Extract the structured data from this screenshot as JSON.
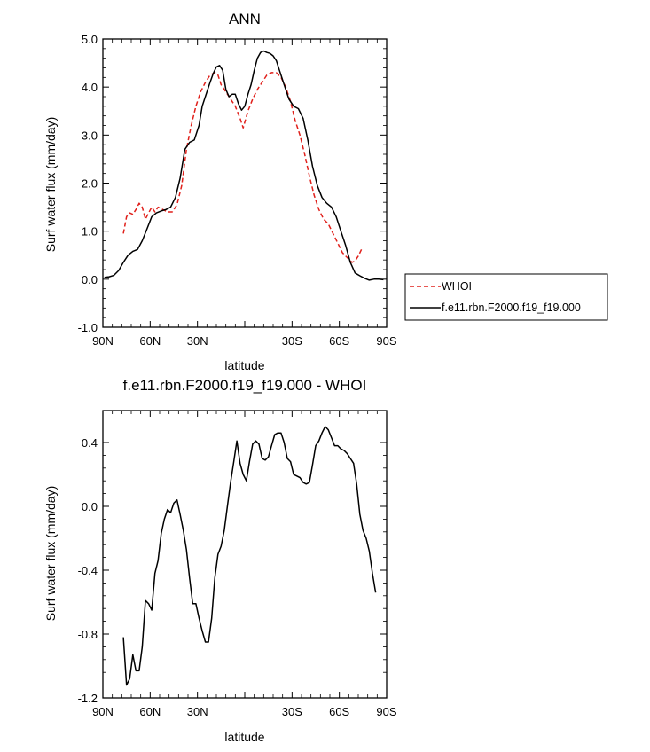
{
  "chart_data": [
    {
      "type": "line",
      "title": "ANN",
      "xlabel": "latitude",
      "ylabel": "Surf water flux (mm/day)",
      "xlim": [
        90,
        -90
      ],
      "ylim": [
        -1.0,
        5.0
      ],
      "x_ticks": [
        90,
        60,
        30,
        0,
        -30,
        -60,
        -90
      ],
      "x_tick_labels": [
        "90N",
        "60N",
        "30N",
        "",
        "30S",
        "60S",
        "90S"
      ],
      "y_ticks": [
        -1,
        0,
        1,
        2,
        3,
        4,
        5
      ],
      "y_tick_labels": [
        "-1.0",
        "0.0",
        "1.0",
        "2.0",
        "3.0",
        "4.0",
        "5.0"
      ],
      "grid": false,
      "legend_position": "right",
      "series": [
        {
          "name": "WHOI",
          "color": "#e0201b",
          "dash": "dashed",
          "points": [
            [
              77,
              0.95
            ],
            [
              75,
              1.3
            ],
            [
              73,
              1.38
            ],
            [
              71,
              1.35
            ],
            [
              69,
              1.45
            ],
            [
              67,
              1.58
            ],
            [
              65,
              1.5
            ],
            [
              63,
              1.25
            ],
            [
              61,
              1.38
            ],
            [
              59,
              1.5
            ],
            [
              57,
              1.4
            ],
            [
              55,
              1.5
            ],
            [
              52,
              1.45
            ],
            [
              49,
              1.4
            ],
            [
              46,
              1.4
            ],
            [
              43,
              1.55
            ],
            [
              40,
              1.95
            ],
            [
              37,
              2.7
            ],
            [
              34,
              3.2
            ],
            [
              31,
              3.6
            ],
            [
              28,
              3.9
            ],
            [
              25,
              4.1
            ],
            [
              22,
              4.25
            ],
            [
              19,
              4.3
            ],
            [
              17,
              4.25
            ],
            [
              15,
              4.05
            ],
            [
              12,
              3.9
            ],
            [
              9,
              3.75
            ],
            [
              6,
              3.6
            ],
            [
              3,
              3.35
            ],
            [
              1,
              3.15
            ],
            [
              -2,
              3.5
            ],
            [
              -5,
              3.75
            ],
            [
              -8,
              3.95
            ],
            [
              -11,
              4.1
            ],
            [
              -14,
              4.25
            ],
            [
              -17,
              4.3
            ],
            [
              -20,
              4.3
            ],
            [
              -23,
              4.2
            ],
            [
              -26,
              4.0
            ],
            [
              -29,
              3.7
            ],
            [
              -32,
              3.3
            ],
            [
              -35,
              3.0
            ],
            [
              -38,
              2.6
            ],
            [
              -41,
              2.15
            ],
            [
              -44,
              1.75
            ],
            [
              -47,
              1.45
            ],
            [
              -50,
              1.25
            ],
            [
              -53,
              1.15
            ],
            [
              -56,
              0.95
            ],
            [
              -59,
              0.75
            ],
            [
              -62,
              0.55
            ],
            [
              -65,
              0.45
            ],
            [
              -68,
              0.35
            ],
            [
              -70,
              0.38
            ],
            [
              -72,
              0.48
            ],
            [
              -74,
              0.62
            ]
          ]
        },
        {
          "name": "f.e11.rbn.F2000.f19_f19.000",
          "color": "#000000",
          "dash": "solid",
          "points": [
            [
              89,
              0.04
            ],
            [
              86,
              0.05
            ],
            [
              83,
              0.08
            ],
            [
              80,
              0.18
            ],
            [
              77,
              0.35
            ],
            [
              74,
              0.5
            ],
            [
              71,
              0.58
            ],
            [
              68,
              0.62
            ],
            [
              65,
              0.8
            ],
            [
              62,
              1.05
            ],
            [
              59,
              1.3
            ],
            [
              56,
              1.38
            ],
            [
              53,
              1.42
            ],
            [
              50,
              1.45
            ],
            [
              47,
              1.5
            ],
            [
              44,
              1.7
            ],
            [
              41,
              2.1
            ],
            [
              38,
              2.7
            ],
            [
              35,
              2.85
            ],
            [
              32,
              2.9
            ],
            [
              29,
              3.2
            ],
            [
              27,
              3.6
            ],
            [
              24,
              3.9
            ],
            [
              22,
              4.1
            ],
            [
              20,
              4.28
            ],
            [
              18,
              4.42
            ],
            [
              16,
              4.45
            ],
            [
              14,
              4.35
            ],
            [
              12,
              3.95
            ],
            [
              10,
              3.8
            ],
            [
              8,
              3.85
            ],
            [
              6,
              3.85
            ],
            [
              4,
              3.65
            ],
            [
              2,
              3.52
            ],
            [
              0,
              3.6
            ],
            [
              -2,
              3.85
            ],
            [
              -4,
              4.05
            ],
            [
              -6,
              4.35
            ],
            [
              -8,
              4.6
            ],
            [
              -10,
              4.72
            ],
            [
              -12,
              4.75
            ],
            [
              -14,
              4.72
            ],
            [
              -16,
              4.7
            ],
            [
              -18,
              4.65
            ],
            [
              -20,
              4.55
            ],
            [
              -22,
              4.35
            ],
            [
              -25,
              4.05
            ],
            [
              -28,
              3.75
            ],
            [
              -31,
              3.6
            ],
            [
              -34,
              3.55
            ],
            [
              -37,
              3.35
            ],
            [
              -40,
              2.9
            ],
            [
              -43,
              2.35
            ],
            [
              -46,
              1.95
            ],
            [
              -49,
              1.7
            ],
            [
              -52,
              1.58
            ],
            [
              -55,
              1.5
            ],
            [
              -58,
              1.3
            ],
            [
              -61,
              1.0
            ],
            [
              -64,
              0.7
            ],
            [
              -67,
              0.35
            ],
            [
              -70,
              0.13
            ],
            [
              -73,
              0.07
            ],
            [
              -76,
              0.02
            ],
            [
              -79,
              -0.02
            ],
            [
              -82,
              0.0
            ],
            [
              -85,
              0.0
            ],
            [
              -88,
              -0.01
            ]
          ]
        }
      ]
    },
    {
      "type": "line",
      "title": "f.e11.rbn.F2000.f19_f19.000 - WHOI",
      "xlabel": "latitude",
      "ylabel": "Surf water flux (mm/day)",
      "xlim": [
        90,
        -90
      ],
      "ylim": [
        -1.2,
        0.6
      ],
      "x_ticks": [
        90,
        60,
        30,
        0,
        -30,
        -60,
        -90
      ],
      "x_tick_labels": [
        "90N",
        "60N",
        "30N",
        "",
        "30S",
        "60S",
        "90S"
      ],
      "y_ticks": [
        -1.2,
        -0.8,
        -0.4,
        0.0,
        0.4
      ],
      "y_tick_labels": [
        "-1.2",
        "-0.8",
        "-0.4",
        "0.0",
        "0.4"
      ],
      "grid": false,
      "series": [
        {
          "color": "#000000",
          "dash": "solid",
          "points": [
            [
              77,
              -0.82
            ],
            [
              75,
              -1.12
            ],
            [
              73,
              -1.08
            ],
            [
              71,
              -0.93
            ],
            [
              69,
              -1.03
            ],
            [
              67,
              -1.03
            ],
            [
              65,
              -0.88
            ],
            [
              63,
              -0.59
            ],
            [
              61,
              -0.61
            ],
            [
              59,
              -0.65
            ],
            [
              57,
              -0.42
            ],
            [
              55,
              -0.34
            ],
            [
              53,
              -0.17
            ],
            [
              51,
              -0.08
            ],
            [
              49,
              -0.02
            ],
            [
              47,
              -0.04
            ],
            [
              45,
              0.02
            ],
            [
              43,
              0.04
            ],
            [
              41,
              -0.05
            ],
            [
              39,
              -0.15
            ],
            [
              37,
              -0.27
            ],
            [
              35,
              -0.45
            ],
            [
              33,
              -0.61
            ],
            [
              31,
              -0.61
            ],
            [
              29,
              -0.7
            ],
            [
              27,
              -0.78
            ],
            [
              25,
              -0.85
            ],
            [
              23,
              -0.85
            ],
            [
              21,
              -0.7
            ],
            [
              19,
              -0.45
            ],
            [
              17,
              -0.3
            ],
            [
              15,
              -0.25
            ],
            [
              13,
              -0.15
            ],
            [
              11,
              0.0
            ],
            [
              9,
              0.15
            ],
            [
              7,
              0.28
            ],
            [
              5,
              0.41
            ],
            [
              3,
              0.27
            ],
            [
              1,
              0.2
            ],
            [
              -1,
              0.16
            ],
            [
              -3,
              0.28
            ],
            [
              -5,
              0.39
            ],
            [
              -7,
              0.41
            ],
            [
              -9,
              0.39
            ],
            [
              -11,
              0.3
            ],
            [
              -13,
              0.29
            ],
            [
              -15,
              0.31
            ],
            [
              -17,
              0.38
            ],
            [
              -19,
              0.45
            ],
            [
              -21,
              0.46
            ],
            [
              -23,
              0.46
            ],
            [
              -25,
              0.4
            ],
            [
              -27,
              0.3
            ],
            [
              -29,
              0.28
            ],
            [
              -31,
              0.2
            ],
            [
              -33,
              0.19
            ],
            [
              -35,
              0.18
            ],
            [
              -37,
              0.15
            ],
            [
              -39,
              0.14
            ],
            [
              -41,
              0.15
            ],
            [
              -43,
              0.26
            ],
            [
              -45,
              0.38
            ],
            [
              -47,
              0.41
            ],
            [
              -49,
              0.46
            ],
            [
              -51,
              0.5
            ],
            [
              -53,
              0.48
            ],
            [
              -55,
              0.43
            ],
            [
              -57,
              0.38
            ],
            [
              -59,
              0.38
            ],
            [
              -61,
              0.36
            ],
            [
              -63,
              0.35
            ],
            [
              -65,
              0.33
            ],
            [
              -67,
              0.3
            ],
            [
              -69,
              0.27
            ],
            [
              -71,
              0.14
            ],
            [
              -73,
              -0.05
            ],
            [
              -75,
              -0.15
            ],
            [
              -77,
              -0.2
            ],
            [
              -79,
              -0.28
            ],
            [
              -81,
              -0.42
            ],
            [
              -83,
              -0.54
            ]
          ]
        }
      ]
    }
  ]
}
